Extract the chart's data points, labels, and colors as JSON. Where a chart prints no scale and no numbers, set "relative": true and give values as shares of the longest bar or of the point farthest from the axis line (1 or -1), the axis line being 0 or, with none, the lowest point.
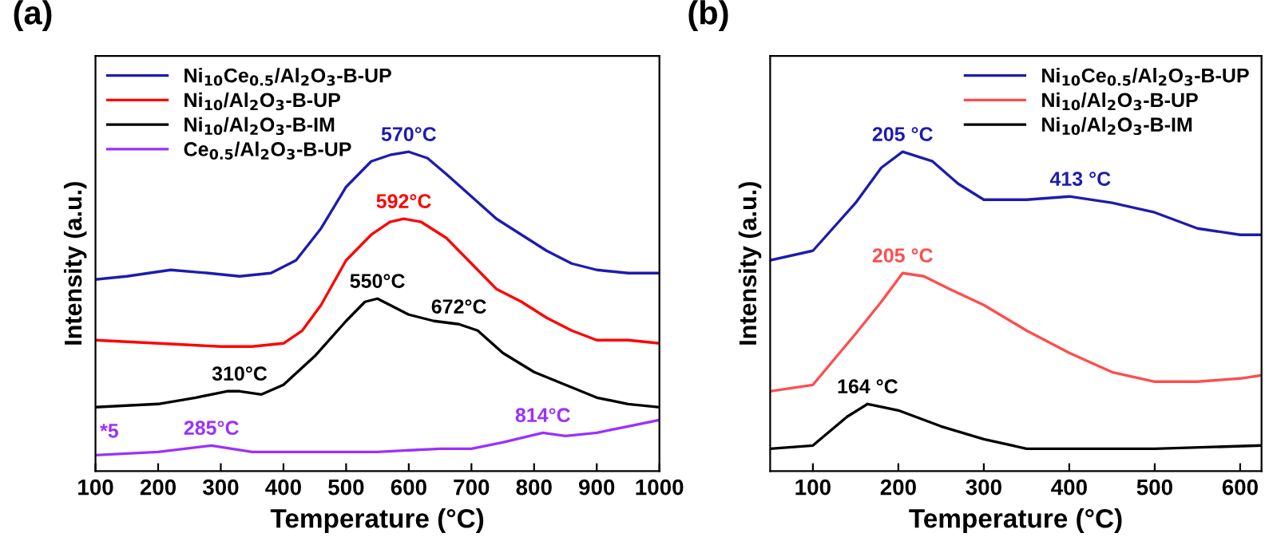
{
  "chart_data": [
    {
      "type": "line",
      "title": "(a)",
      "xlabel": "Temperature (°C)",
      "ylabel": "Intensity (a.u.)",
      "relative": true,
      "xlim": [
        100,
        1000
      ],
      "xticks": [
        100,
        200,
        300,
        400,
        500,
        600,
        700,
        800,
        900,
        1000
      ],
      "tick_labels": "x",
      "legend": "top left",
      "grid": false,
      "series": [
        {
          "name": "Ni$_{10}$Ce$_{0.5}$/Al$_{2}$O$_{3}$-B-UP",
          "color": "#1c1cb0",
          "x": [
            100,
            150,
            220,
            280,
            330,
            380,
            420,
            460,
            500,
            540,
            570,
            600,
            630,
            660,
            700,
            740,
            780,
            820,
            860,
            900,
            950,
            1000
          ],
          "values": [
            0.6,
            0.61,
            0.63,
            0.62,
            0.61,
            0.62,
            0.66,
            0.76,
            0.89,
            0.97,
            0.99,
            1.0,
            0.98,
            0.93,
            0.86,
            0.79,
            0.74,
            0.69,
            0.65,
            0.63,
            0.62,
            0.62
          ]
        },
        {
          "name": "Ni$_{10}$/Al$_{2}$O$_{3}$-B-UP",
          "color": "#ff0000",
          "x": [
            100,
            200,
            300,
            350,
            400,
            430,
            460,
            500,
            540,
            570,
            592,
            620,
            660,
            700,
            740,
            780,
            820,
            860,
            900,
            950,
            1000
          ],
          "values": [
            0.41,
            0.4,
            0.39,
            0.39,
            0.4,
            0.44,
            0.52,
            0.66,
            0.74,
            0.78,
            0.79,
            0.78,
            0.73,
            0.65,
            0.57,
            0.53,
            0.48,
            0.44,
            0.41,
            0.41,
            0.4
          ]
        },
        {
          "name": "Ni$_{10}$/Al$_{2}$O$_{3}$-B-IM",
          "color": "#000000",
          "x": [
            100,
            200,
            260,
            310,
            330,
            365,
            400,
            450,
            500,
            530,
            550,
            580,
            600,
            640,
            680,
            710,
            750,
            800,
            850,
            900,
            950,
            1000
          ],
          "values": [
            0.2,
            0.21,
            0.23,
            0.25,
            0.25,
            0.24,
            0.27,
            0.36,
            0.47,
            0.53,
            0.54,
            0.51,
            0.49,
            0.47,
            0.46,
            0.44,
            0.37,
            0.31,
            0.27,
            0.23,
            0.21,
            0.2
          ]
        },
        {
          "name": "Ce$_{0.5}$/Al$_{2}$O$_{3}$-B-UP",
          "color": "#9b30ff",
          "x": [
            100,
            200,
            285,
            350,
            450,
            550,
            650,
            700,
            750,
            814,
            850,
            900,
            950,
            1000
          ],
          "values": [
            0.05,
            0.06,
            0.08,
            0.06,
            0.06,
            0.06,
            0.07,
            0.07,
            0.09,
            0.12,
            0.11,
            0.12,
            0.14,
            0.16
          ]
        }
      ],
      "annotations": [
        {
          "text": "570°C",
          "x": 600,
          "y": 1.0
        },
        {
          "text": "592°C",
          "x": 592,
          "y": 0.79
        },
        {
          "text": "550°C",
          "x": 550,
          "y": 0.54
        },
        {
          "text": "672°C",
          "x": 680,
          "y": 0.46
        },
        {
          "text": "310°C",
          "x": 330,
          "y": 0.25
        },
        {
          "text": "285°C",
          "x": 285,
          "y": 0.08
        },
        {
          "text": "814°C",
          "x": 814,
          "y": 0.12
        },
        {
          "text": "*5",
          "x": 100,
          "y": 0.05
        }
      ]
    },
    {
      "type": "line",
      "title": "(b)",
      "xlabel": "Temperature (°C)",
      "ylabel": "Intensity (a.u.)",
      "relative": true,
      "xlim": [
        50,
        625
      ],
      "xticks": [
        100,
        200,
        300,
        400,
        500,
        600
      ],
      "tick_labels": "x",
      "legend": "top right",
      "grid": false,
      "series": [
        {
          "name": "Ni$_{10}$Ce$_{0.5}$/Al$_{2}$O$_{3}$-B-UP",
          "color": "#1c1cb0",
          "x": [
            50,
            100,
            150,
            180,
            205,
            240,
            270,
            300,
            350,
            400,
            450,
            500,
            550,
            600,
            625
          ],
          "values": [
            0.66,
            0.69,
            0.84,
            0.95,
            1.0,
            0.97,
            0.9,
            0.85,
            0.85,
            0.86,
            0.84,
            0.81,
            0.76,
            0.74,
            0.74
          ]
        },
        {
          "name": "Ni$_{10}$/Al$_{2}$O$_{3}$-B-UP",
          "color": "#ff4d4d",
          "x": [
            50,
            100,
            150,
            180,
            205,
            230,
            260,
            300,
            350,
            400,
            450,
            500,
            550,
            600,
            625
          ],
          "values": [
            0.25,
            0.27,
            0.43,
            0.53,
            0.62,
            0.61,
            0.57,
            0.52,
            0.44,
            0.37,
            0.31,
            0.28,
            0.28,
            0.29,
            0.3
          ]
        },
        {
          "name": "Ni$_{10}$/Al$_{2}$O$_{3}$-B-IM",
          "color": "#000000",
          "x": [
            50,
            100,
            140,
            164,
            200,
            250,
            300,
            350,
            400,
            500,
            625
          ],
          "values": [
            0.07,
            0.08,
            0.17,
            0.21,
            0.19,
            0.14,
            0.1,
            0.07,
            0.07,
            0.07,
            0.08
          ]
        }
      ],
      "annotations": [
        {
          "text": "205 °C",
          "x": 205,
          "y": 1.0
        },
        {
          "text": "413 °C",
          "x": 413,
          "y": 0.86
        },
        {
          "text": "205 °C",
          "x": 205,
          "y": 0.62
        },
        {
          "text": "164 °C",
          "x": 164,
          "y": 0.21
        }
      ]
    }
  ]
}
